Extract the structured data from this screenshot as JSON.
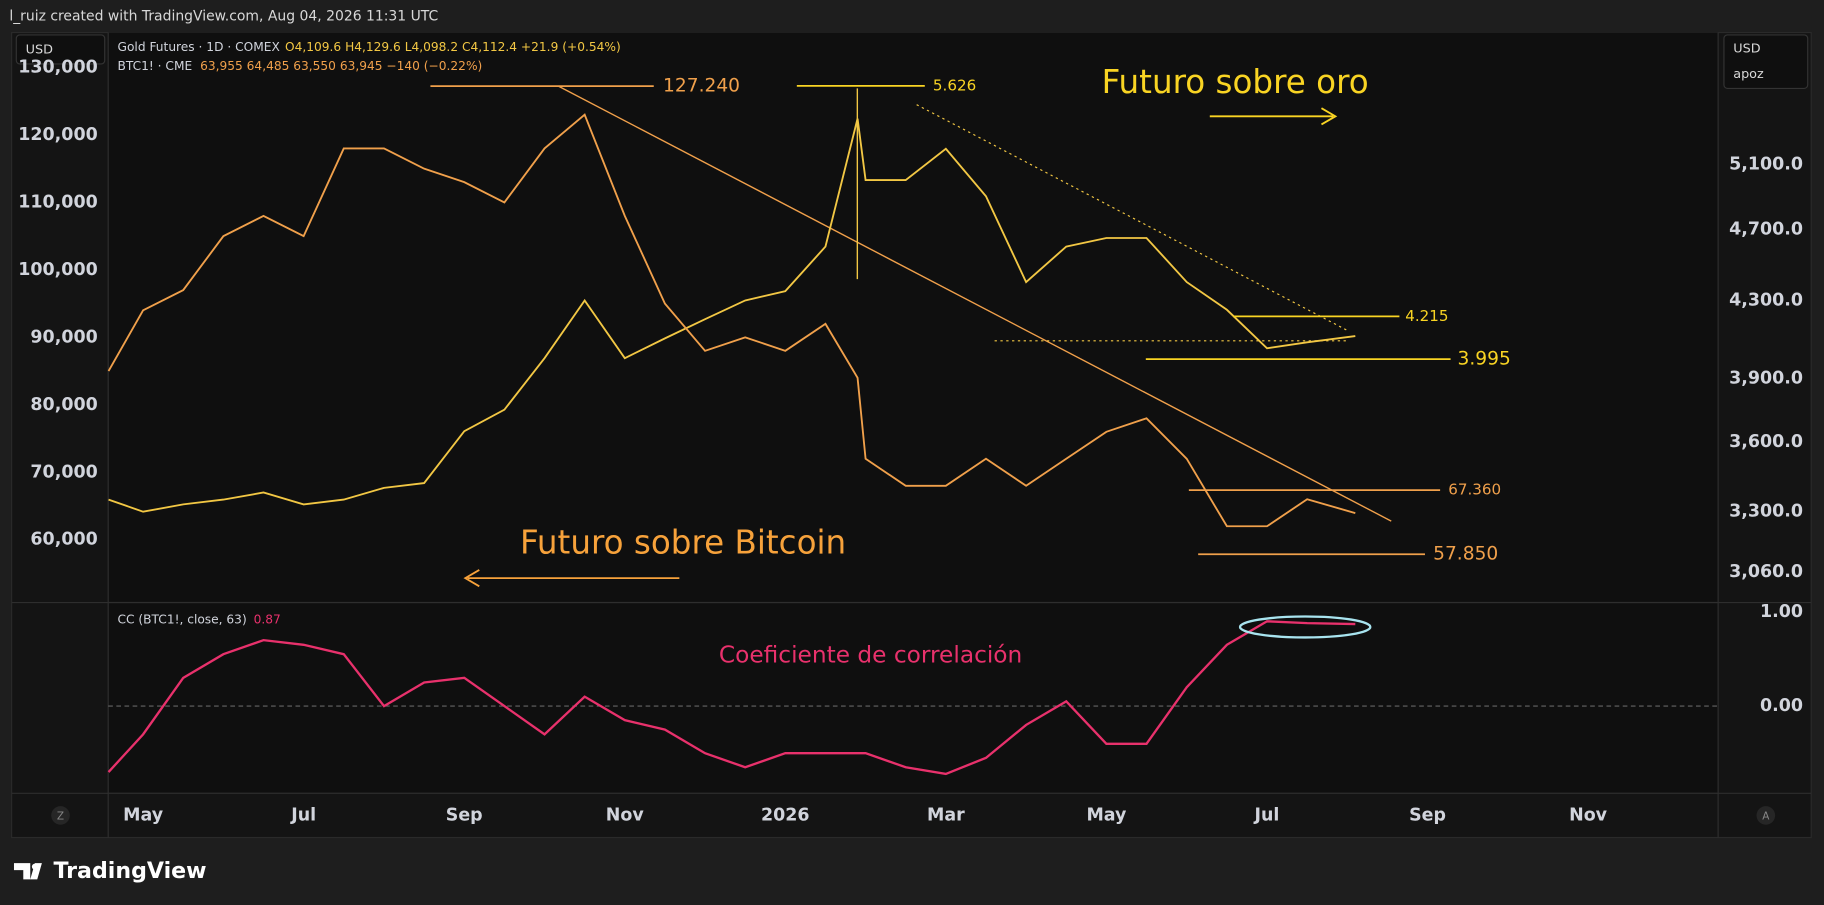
{
  "header": {
    "credit": "l_ruiz created with TradingView.com, Aug 04, 2026 11:31 UTC"
  },
  "toolbar": {
    "left_currency": "USD",
    "right_currency": "USD",
    "right_scale": "apoz",
    "left_button": "Z",
    "right_button": "A"
  },
  "footer": {
    "brand": "TradingView"
  },
  "chart_data": [
    {
      "type": "line",
      "x": [
        -0.43,
        0,
        0.5,
        1,
        1.5,
        2,
        2.5,
        3,
        3.5,
        4,
        4.5,
        5,
        5.5,
        6,
        6.5,
        7,
        7.5,
        8,
        8.5,
        8.9,
        9,
        9.5,
        10,
        10.5,
        11,
        11.5,
        12,
        12.5,
        13,
        13.5,
        14,
        14.5,
        15.1
      ],
      "xlim": [
        -0.435,
        19.62
      ],
      "xticks": [
        {
          "value": 0,
          "label": "May"
        },
        {
          "value": 2,
          "label": "Jul"
        },
        {
          "value": 4,
          "label": "Sep"
        },
        {
          "value": 6,
          "label": "Nov"
        },
        {
          "value": 8,
          "label": "2026"
        },
        {
          "value": 10,
          "label": "Mar"
        },
        {
          "value": 12,
          "label": "May"
        },
        {
          "value": 14,
          "label": "Jul"
        },
        {
          "value": 16,
          "label": "Sep"
        },
        {
          "value": 18,
          "label": "Nov"
        }
      ],
      "ylim": [
        50860,
        135170
      ],
      "yticks": [
        {
          "value": 60000,
          "label": "60,000"
        },
        {
          "value": 70000,
          "label": "70,000"
        },
        {
          "value": 80000,
          "label": "80,000"
        },
        {
          "value": 90000,
          "label": "90,000"
        },
        {
          "value": 100000,
          "label": "100,000"
        },
        {
          "value": 110000,
          "label": "110,000"
        },
        {
          "value": 120000,
          "label": "120,000"
        },
        {
          "value": 130000,
          "label": "130,000"
        }
      ],
      "y2lim": [
        2949,
        6015
      ],
      "y2log": true,
      "y2ticks": [
        {
          "value": 3060,
          "label": "3,060.0"
        },
        {
          "value": 3300,
          "label": "3,300.0"
        },
        {
          "value": 3600,
          "label": "3,600.0"
        },
        {
          "value": 3900,
          "label": "3,900.0"
        },
        {
          "value": 4300,
          "label": "4,300.0"
        },
        {
          "value": 4700,
          "label": "4,700.0"
        },
        {
          "value": 5100,
          "label": "5,100.0"
        }
      ],
      "grid": false,
      "series": [
        {
          "name": "Gold Futures · 1D · COMEX",
          "ohlc": "O4,109.6  H4,129.6  L4,098.2  C4,112.4  +21.9 (+0.54%)",
          "color": "#f2c744",
          "axis": "y2",
          "values": [
            3350,
            3300,
            3330,
            3350,
            3380,
            3330,
            3350,
            3400,
            3420,
            3650,
            3750,
            4000,
            4300,
            4000,
            4100,
            4200,
            4300,
            4350,
            4600,
            5400,
            5000,
            5000,
            5200,
            4900,
            4400,
            4600,
            4650,
            4650,
            4400,
            4250,
            4050,
            4080,
            4112.4
          ]
        },
        {
          "name": "BTC1! · CME",
          "ohlc": "63,955  64,485  63,550  63,945  −140 (−0.22%)",
          "color": "#f0a04b",
          "values": [
            85000,
            94000,
            97000,
            105000,
            108000,
            105000,
            118000,
            118000,
            115000,
            113000,
            110000,
            118000,
            123000,
            108000,
            95000,
            88000,
            90000,
            88000,
            92000,
            84000,
            72000,
            68000,
            68000,
            72000,
            68000,
            72000,
            76000,
            78000,
            72000,
            62000,
            62000,
            66000,
            63945
          ]
        }
      ],
      "annotations": [
        {
          "label": "127.240",
          "value": 127240,
          "axis": "y",
          "color": "#f0a04b"
        },
        {
          "label": "5.626",
          "value": 5626,
          "axis": "y2",
          "color": "#f9d423"
        },
        {
          "label": "4.215",
          "value": 4215,
          "axis": "y2",
          "color": "#f9d423"
        },
        {
          "label": "3.995",
          "value": 3995,
          "axis": "y2",
          "color": "#f9d423"
        },
        {
          "label": "67.360",
          "value": 67360,
          "axis": "y",
          "color": "#f0a04b"
        },
        {
          "label": "57.850",
          "value": 57850,
          "axis": "y",
          "color": "#f0a04b"
        }
      ],
      "notes": {
        "gold": "Futuro sobre oro",
        "bitcoin": "Futuro sobre Bitcoin"
      }
    },
    {
      "type": "line",
      "x": [
        -0.43,
        0,
        0.5,
        1,
        1.5,
        2,
        2.5,
        3,
        3.5,
        4,
        4.5,
        5,
        5.5,
        6,
        6.5,
        7,
        7.5,
        8,
        8.5,
        8.9,
        9,
        9.5,
        10,
        10.5,
        11,
        11.5,
        12,
        12.5,
        13,
        13.5,
        14,
        14.5,
        15.1
      ],
      "xlim": [
        -0.435,
        19.62
      ],
      "ylim": [
        -0.914,
        1.086
      ],
      "yticks": [
        {
          "value": 0,
          "label": "0.00"
        },
        {
          "value": 1,
          "label": "1.00"
        }
      ],
      "zero_line": true,
      "series": [
        {
          "name": "CC (BTC1!, close, 63)",
          "current_label": "0.87",
          "color": "#e8316c",
          "values": [
            -0.7,
            -0.3,
            0.3,
            0.55,
            0.7,
            0.65,
            0.55,
            0.0,
            0.25,
            0.3,
            0.0,
            -0.3,
            0.1,
            -0.15,
            -0.25,
            -0.5,
            -0.65,
            -0.5,
            -0.5,
            -0.5,
            -0.5,
            -0.65,
            -0.72,
            -0.55,
            -0.2,
            0.05,
            -0.4,
            -0.4,
            0.2,
            0.65,
            0.9,
            0.88,
            0.87
          ]
        }
      ],
      "note": "Coeficiente de correlación"
    }
  ]
}
